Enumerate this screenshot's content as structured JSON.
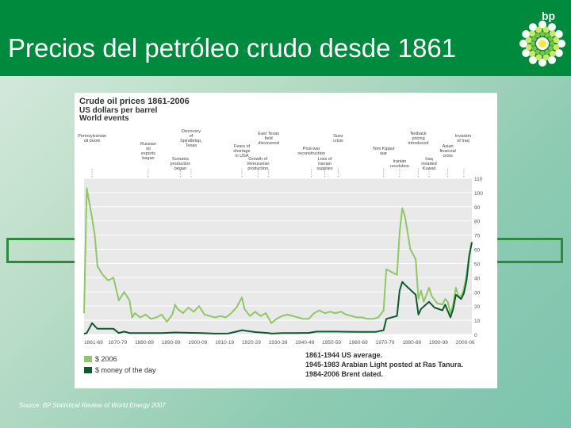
{
  "slide": {
    "title": "Precios del petróleo crudo desde 1861",
    "brand": "bp",
    "source": "Source: BP Statistical Review of World Energy 2007"
  },
  "colors": {
    "header_green": "#008a3e",
    "series_2006": "#8fc766",
    "series_money_of_day": "#0d5a2e"
  },
  "chart_data": {
    "type": "line",
    "title": "Crude oil prices 1861-2006",
    "subtitle": "US dollars per barrel",
    "subtitle2": "World events",
    "ylim": [
      0,
      110
    ],
    "y_ticks": [
      0,
      10,
      20,
      30,
      40,
      50,
      60,
      70,
      80,
      90,
      100,
      110
    ],
    "x_range": [
      1861,
      2006
    ],
    "x_tick_labels": [
      {
        "label": "1861-69",
        "start": 1861
      },
      {
        "label": "1870-79",
        "start": 1870
      },
      {
        "label": "1880-89",
        "start": 1880
      },
      {
        "label": "1890-99",
        "start": 1890
      },
      {
        "label": "1900-09",
        "start": 1900
      },
      {
        "label": "1910-19",
        "start": 1910
      },
      {
        "label": "1920-29",
        "start": 1920
      },
      {
        "label": "1930-39",
        "start": 1930
      },
      {
        "label": "1940-49",
        "start": 1940
      },
      {
        "label": "1950-59",
        "start": 1950
      },
      {
        "label": "1960-69",
        "start": 1960
      },
      {
        "label": "1970-79",
        "start": 1970
      },
      {
        "label": "1980-89",
        "start": 1980
      },
      {
        "label": "1990-99",
        "start": 1990
      },
      {
        "label": "2000-06",
        "start": 2000
      }
    ],
    "series": [
      {
        "name": "$ 2006",
        "color": "#8fc766",
        "points": [
          [
            1861,
            15
          ],
          [
            1862,
            103
          ],
          [
            1864,
            82
          ],
          [
            1865,
            70
          ],
          [
            1866,
            48
          ],
          [
            1868,
            42
          ],
          [
            1870,
            38
          ],
          [
            1872,
            40
          ],
          [
            1874,
            24
          ],
          [
            1876,
            30
          ],
          [
            1878,
            24
          ],
          [
            1879,
            12
          ],
          [
            1880,
            15
          ],
          [
            1882,
            12
          ],
          [
            1884,
            14
          ],
          [
            1886,
            11
          ],
          [
            1888,
            12
          ],
          [
            1890,
            14
          ],
          [
            1892,
            9
          ],
          [
            1894,
            14
          ],
          [
            1895,
            21
          ],
          [
            1896,
            18
          ],
          [
            1898,
            15
          ],
          [
            1900,
            19
          ],
          [
            1902,
            16
          ],
          [
            1904,
            20
          ],
          [
            1906,
            14
          ],
          [
            1908,
            13
          ],
          [
            1910,
            12
          ],
          [
            1912,
            13
          ],
          [
            1914,
            12
          ],
          [
            1916,
            15
          ],
          [
            1918,
            19
          ],
          [
            1920,
            26
          ],
          [
            1921,
            18
          ],
          [
            1923,
            13
          ],
          [
            1925,
            16
          ],
          [
            1927,
            13
          ],
          [
            1929,
            15
          ],
          [
            1931,
            8
          ],
          [
            1933,
            11
          ],
          [
            1935,
            13
          ],
          [
            1937,
            14
          ],
          [
            1939,
            13
          ],
          [
            1941,
            12
          ],
          [
            1943,
            11
          ],
          [
            1945,
            11
          ],
          [
            1947,
            15
          ],
          [
            1949,
            17
          ],
          [
            1951,
            15
          ],
          [
            1953,
            16
          ],
          [
            1955,
            15
          ],
          [
            1957,
            16
          ],
          [
            1959,
            14
          ],
          [
            1961,
            13
          ],
          [
            1963,
            12
          ],
          [
            1965,
            12
          ],
          [
            1967,
            11
          ],
          [
            1969,
            11
          ],
          [
            1971,
            12
          ],
          [
            1973,
            17
          ],
          [
            1974,
            46
          ],
          [
            1976,
            44
          ],
          [
            1978,
            42
          ],
          [
            1979,
            72
          ],
          [
            1980,
            89
          ],
          [
            1981,
            83
          ],
          [
            1983,
            60
          ],
          [
            1985,
            53
          ],
          [
            1986,
            25
          ],
          [
            1987,
            31
          ],
          [
            1988,
            23
          ],
          [
            1990,
            33
          ],
          [
            1991,
            27
          ],
          [
            1993,
            22
          ],
          [
            1995,
            21
          ],
          [
            1996,
            25
          ],
          [
            1997,
            23
          ],
          [
            1998,
            15
          ],
          [
            1999,
            21
          ],
          [
            2000,
            33
          ],
          [
            2001,
            27
          ],
          [
            2002,
            27
          ],
          [
            2003,
            32
          ],
          [
            2004,
            42
          ],
          [
            2005,
            56
          ],
          [
            2006,
            65
          ]
        ]
      },
      {
        "name": "$ money of the day",
        "color": "#0d5a2e",
        "points": [
          [
            1861,
            0.5
          ],
          [
            1862,
            1
          ],
          [
            1864,
            8
          ],
          [
            1865,
            6
          ],
          [
            1866,
            4
          ],
          [
            1868,
            4
          ],
          [
            1870,
            4
          ],
          [
            1872,
            4
          ],
          [
            1874,
            1
          ],
          [
            1876,
            2
          ],
          [
            1878,
            1
          ],
          [
            1880,
            1
          ],
          [
            1885,
            1
          ],
          [
            1890,
            1
          ],
          [
            1895,
            1.4
          ],
          [
            1900,
            1.2
          ],
          [
            1905,
            1
          ],
          [
            1910,
            0.6
          ],
          [
            1915,
            0.7
          ],
          [
            1918,
            2
          ],
          [
            1920,
            3
          ],
          [
            1925,
            1.7
          ],
          [
            1930,
            1
          ],
          [
            1931,
            0.6
          ],
          [
            1935,
            1
          ],
          [
            1940,
            1
          ],
          [
            1945,
            1.1
          ],
          [
            1948,
            2
          ],
          [
            1955,
            2
          ],
          [
            1960,
            1.9
          ],
          [
            1965,
            1.8
          ],
          [
            1970,
            1.8
          ],
          [
            1973,
            3
          ],
          [
            1974,
            11
          ],
          [
            1978,
            13
          ],
          [
            1979,
            31
          ],
          [
            1980,
            37
          ],
          [
            1981,
            35
          ],
          [
            1985,
            28
          ],
          [
            1986,
            14
          ],
          [
            1987,
            18
          ],
          [
            1990,
            23
          ],
          [
            1992,
            19
          ],
          [
            1995,
            17
          ],
          [
            1996,
            21
          ],
          [
            1998,
            12
          ],
          [
            1999,
            18
          ],
          [
            2000,
            28
          ],
          [
            2002,
            25
          ],
          [
            2003,
            29
          ],
          [
            2004,
            38
          ],
          [
            2005,
            55
          ],
          [
            2006,
            65
          ]
        ]
      }
    ],
    "annotations": [
      "1861-1944 US average.",
      "1945-1983 Arabian Light posted at Ras Tanura.",
      "1984-2006 Brent dated."
    ],
    "events": [
      {
        "text": "Pennsylvanian oil boom",
        "year": 1864
      },
      {
        "text": "Russian oil exports began",
        "year": 1885
      },
      {
        "text": "Sumatra production began",
        "year": 1897
      },
      {
        "text": "Discovery of Spindletop, Texas",
        "year": 1901
      },
      {
        "text": "Fears of shortage in USA",
        "year": 1920
      },
      {
        "text": "Growth of Venezuelan production",
        "year": 1926
      },
      {
        "text": "East Texas field discovered",
        "year": 1930
      },
      {
        "text": "Post-war reconstruction",
        "year": 1946
      },
      {
        "text": "Loss of Iranian supplies",
        "year": 1951
      },
      {
        "text": "Suez crisis",
        "year": 1956
      },
      {
        "text": "Yom Kippur war",
        "year": 1973
      },
      {
        "text": "Iranian revolution",
        "year": 1979
      },
      {
        "text": "Netback pricing introduced",
        "year": 1986
      },
      {
        "text": "Asian financial crisis",
        "year": 1997
      },
      {
        "text": "Iraq invaded Kuwait",
        "year": 1990
      },
      {
        "text": "Invasion of Iraq",
        "year": 2003
      }
    ]
  }
}
